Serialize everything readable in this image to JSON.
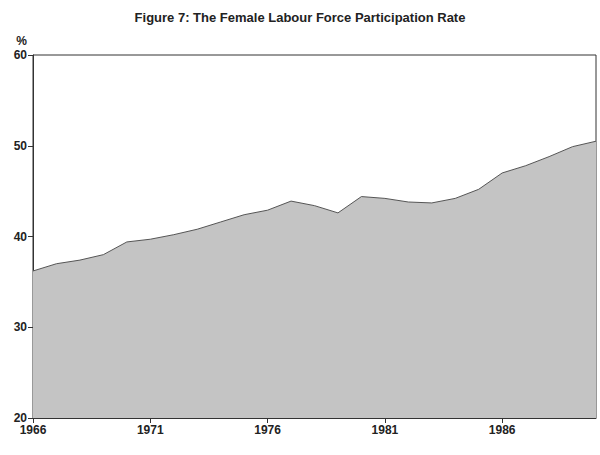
{
  "chart_data": {
    "type": "area",
    "title": "Figure 7: The Female Labour Force Participation Rate",
    "y_label": "%",
    "x": [
      1966,
      1967,
      1968,
      1969,
      1970,
      1971,
      1972,
      1973,
      1974,
      1975,
      1976,
      1977,
      1978,
      1979,
      1980,
      1981,
      1982,
      1983,
      1984,
      1985,
      1986,
      1987,
      1988,
      1989,
      1990
    ],
    "values": [
      36.2,
      37.0,
      37.4,
      38.0,
      39.4,
      39.7,
      40.2,
      40.8,
      41.6,
      42.4,
      42.9,
      43.9,
      43.4,
      42.6,
      44.4,
      44.2,
      43.8,
      43.7,
      44.2,
      45.2,
      47.0,
      47.8,
      48.8,
      49.9,
      50.5
    ],
    "color": "#c4c4c4",
    "xlim": [
      1966,
      1990
    ],
    "xticks": [
      1966,
      1971,
      1976,
      1981,
      1986
    ],
    "ylim": [
      20,
      60
    ],
    "yticks": [
      20,
      30,
      40,
      50,
      60
    ],
    "grid": false
  }
}
